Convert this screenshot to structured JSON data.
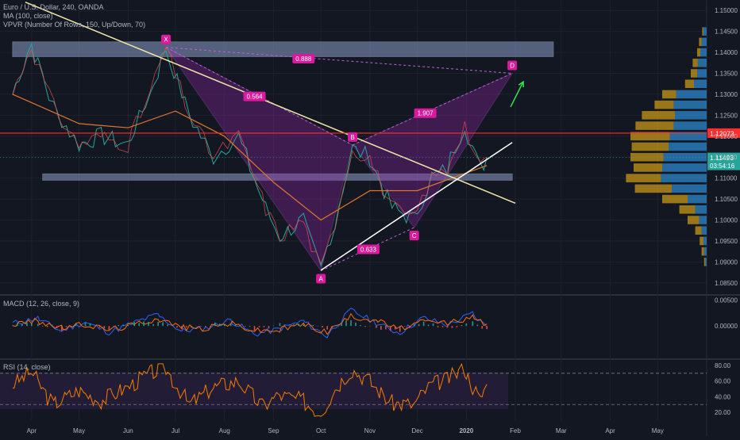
{
  "chart_data": [
    {
      "type": "line",
      "panel": "price",
      "title": "Euro / U.S. Dollar, 240, OANDA",
      "indicators": [
        "MA (100, close)",
        "VPVR (Number Of Rows, 150, Up/Down, 70)"
      ],
      "x_labels": [
        "Apr",
        "May",
        "Jun",
        "Jul",
        "Aug",
        "Sep",
        "Oct",
        "Nov",
        "Dec",
        "2020",
        "Feb",
        "Mar",
        "Apr",
        "May"
      ],
      "y_ticks": [
        "1.15000",
        "1.14500",
        "1.14000",
        "1.13500",
        "1.13000",
        "1.12500",
        "1.12000",
        "1.11500",
        "1.11000",
        "1.10500",
        "1.10000",
        "1.09500",
        "1.09000",
        "1.08500"
      ],
      "ylim": [
        1.0825,
        1.1525
      ],
      "grid": true,
      "series": [
        {
          "x": [
            "2019-03-20",
            "2019-04-01",
            "2019-04-15",
            "2019-05-01",
            "2019-05-15",
            "2019-06-01",
            "2019-06-15",
            "2019-06-25",
            "2019-07-10",
            "2019-07-25",
            "2019-08-10",
            "2019-08-25",
            "2019-09-05",
            "2019-09-20",
            "2019-10-01",
            "2019-10-10",
            "2019-10-21",
            "2019-11-01",
            "2019-11-15",
            "2019-11-29",
            "2019-12-10",
            "2019-12-20",
            "2019-12-31",
            "2020-01-10",
            "2020-01-14"
          ],
          "values": [
            1.13,
            1.142,
            1.127,
            1.118,
            1.12,
            1.118,
            1.13,
            1.141,
            1.125,
            1.115,
            1.12,
            1.105,
            1.096,
            1.1,
            1.088,
            1.099,
            1.117,
            1.115,
            1.103,
            1.1,
            1.11,
            1.112,
            1.123,
            1.112,
            1.115
          ]
        },
        {
          "name": "MA (100, close)",
          "x": [
            "2019-03-20",
            "2019-05-01",
            "2019-06-01",
            "2019-07-01",
            "2019-08-01",
            "2019-09-01",
            "2019-10-01",
            "2019-11-01",
            "2019-12-01",
            "2020-01-14"
          ],
          "values": [
            1.13,
            1.123,
            1.122,
            1.126,
            1.12,
            1.109,
            1.1,
            1.107,
            1.107,
            1.113
          ]
        }
      ],
      "harmonic_points": [
        {
          "label": "X",
          "x": "2019-06-25",
          "y": 1.1412
        },
        {
          "label": "A",
          "x": "2019-10-01",
          "y": 1.0879
        },
        {
          "label": "B",
          "x": "2019-10-21",
          "y": 1.1179
        },
        {
          "label": "C",
          "x": "2019-11-29",
          "y": 1.0982
        },
        {
          "label": "D",
          "x": "2020-01-30",
          "y": 1.135
        }
      ],
      "ratio_labels": [
        {
          "text": "0.888",
          "x": "2019-09-20",
          "y": 1.1385
        },
        {
          "text": "0.564",
          "x": "2019-08-20",
          "y": 1.1295
        },
        {
          "text": "1.907",
          "x": "2019-12-06",
          "y": 1.1255
        },
        {
          "text": "0.633",
          "x": "2019-10-31",
          "y": 1.093
        }
      ],
      "zones": [
        {
          "x0": "2019-03-20",
          "x1": "2020-02-25",
          "y0": 1.139,
          "y1": 1.1425
        },
        {
          "x0": "2019-04-08",
          "x1": "2020-01-30",
          "y0": 1.1095,
          "y1": 1.111
        }
      ],
      "trendlines": [
        {
          "x0": "2019-03-28",
          "y0": 1.152,
          "x1": "2020-02-01",
          "y1": 1.104,
          "color": "#f0e7a8"
        },
        {
          "x0": "2019-10-01",
          "y0": 1.088,
          "x1": "2020-01-30",
          "y1": 1.1185,
          "color": "#ffffff"
        }
      ],
      "horizontal_lines": [
        {
          "value": 1.12073,
          "label": "1.12073",
          "color": "#ff2d2d"
        }
      ],
      "last_price": {
        "value": 1.11493,
        "label": "1.11493",
        "countdown": "03:54:16",
        "color": "#26a69a"
      },
      "projection_arrow": {
        "x0": "2020-01-29",
        "y0": 1.127,
        "x1": "2020-02-06",
        "y1": 1.133,
        "color": "#2ee84a"
      },
      "volume_profile": {
        "up_color": "#2d8fd5",
        "down_color": "#d4a017",
        "poc": 1.1207,
        "levels": [
          1.145,
          1.1425,
          1.14,
          1.1375,
          1.135,
          1.1325,
          1.13,
          1.1275,
          1.125,
          1.1225,
          1.12,
          1.1175,
          1.115,
          1.1125,
          1.11,
          1.1075,
          1.105,
          1.1025,
          1.1,
          1.0975,
          1.095,
          1.0925,
          1.09
        ],
        "up": [
          0.05,
          0.08,
          0.1,
          0.14,
          0.15,
          0.2,
          0.48,
          0.52,
          0.5,
          0.52,
          0.58,
          0.6,
          0.68,
          0.7,
          0.72,
          0.55,
          0.3,
          0.18,
          0.12,
          0.08,
          0.05,
          0.04,
          0.02
        ],
        "down": [
          0.02,
          0.04,
          0.05,
          0.08,
          0.1,
          0.14,
          0.22,
          0.3,
          0.52,
          0.6,
          0.62,
          0.58,
          0.52,
          0.45,
          0.55,
          0.58,
          0.4,
          0.25,
          0.18,
          0.1,
          0.06,
          0.04,
          0.02
        ]
      }
    },
    {
      "type": "line",
      "panel": "macd",
      "title": "MACD (12, 26, close, 9)",
      "y_ticks": [
        "0.00500",
        "0.00000"
      ],
      "ylim": [
        -0.0062,
        0.0055
      ],
      "series": [
        {
          "name": "MACD",
          "color": "#2962ff",
          "x": [
            "2019-03-20",
            "2019-04-05",
            "2019-04-20",
            "2019-05-05",
            "2019-05-20",
            "2019-06-05",
            "2019-06-20",
            "2019-07-05",
            "2019-07-20",
            "2019-08-05",
            "2019-08-20",
            "2019-09-05",
            "2019-09-20",
            "2019-10-05",
            "2019-10-20",
            "2019-11-05",
            "2019-11-20",
            "2019-12-05",
            "2019-12-20",
            "2020-01-05",
            "2020-01-14"
          ],
          "values": [
            0.0005,
            0.0015,
            -0.001,
            0.0008,
            -0.0012,
            0.0006,
            0.0022,
            -0.001,
            -0.0004,
            0.0012,
            -0.0016,
            -0.0006,
            0.001,
            -0.002,
            0.003,
            0.0006,
            -0.0014,
            0.0016,
            0.0002,
            0.0024,
            -0.0002
          ]
        },
        {
          "name": "Signal",
          "color": "#ff6d00",
          "x": [
            "2019-03-20",
            "2019-04-05",
            "2019-04-20",
            "2019-05-05",
            "2019-05-20",
            "2019-06-05",
            "2019-06-20",
            "2019-07-05",
            "2019-07-20",
            "2019-08-05",
            "2019-08-20",
            "2019-09-05",
            "2019-09-20",
            "2019-10-05",
            "2019-10-20",
            "2019-11-05",
            "2019-11-20",
            "2019-12-05",
            "2019-12-20",
            "2020-01-05",
            "2020-01-14"
          ],
          "values": [
            0.0003,
            0.001,
            -0.0004,
            0.0003,
            -0.0007,
            0.0002,
            0.0015,
            -0.0002,
            -0.0005,
            0.0006,
            -0.0009,
            -0.0008,
            0.0004,
            -0.0012,
            0.0018,
            0.0012,
            -0.0006,
            0.0008,
            0.0006,
            0.0016,
            0.0004
          ]
        }
      ]
    },
    {
      "type": "line",
      "panel": "rsi",
      "title": "RSI (14, close)",
      "y_ticks": [
        "80.00",
        "60.00",
        "40.00",
        "20.00"
      ],
      "ylim": [
        10,
        86
      ],
      "bands": [
        30,
        70
      ],
      "series": [
        {
          "name": "RSI",
          "color": "#f57c00",
          "x": [
            "2019-03-20",
            "2019-04-01",
            "2019-04-15",
            "2019-05-01",
            "2019-05-15",
            "2019-06-01",
            "2019-06-15",
            "2019-06-25",
            "2019-07-10",
            "2019-07-25",
            "2019-08-10",
            "2019-08-25",
            "2019-09-05",
            "2019-09-20",
            "2019-10-01",
            "2019-10-10",
            "2019-10-21",
            "2019-11-01",
            "2019-11-15",
            "2019-11-29",
            "2019-12-10",
            "2019-12-20",
            "2019-12-31",
            "2020-01-10",
            "2020-01-14"
          ],
          "values": [
            55,
            72,
            30,
            48,
            35,
            52,
            70,
            76,
            30,
            52,
            60,
            28,
            42,
            35,
            18,
            50,
            75,
            60,
            32,
            30,
            55,
            62,
            76,
            35,
            56
          ]
        }
      ]
    }
  ]
}
